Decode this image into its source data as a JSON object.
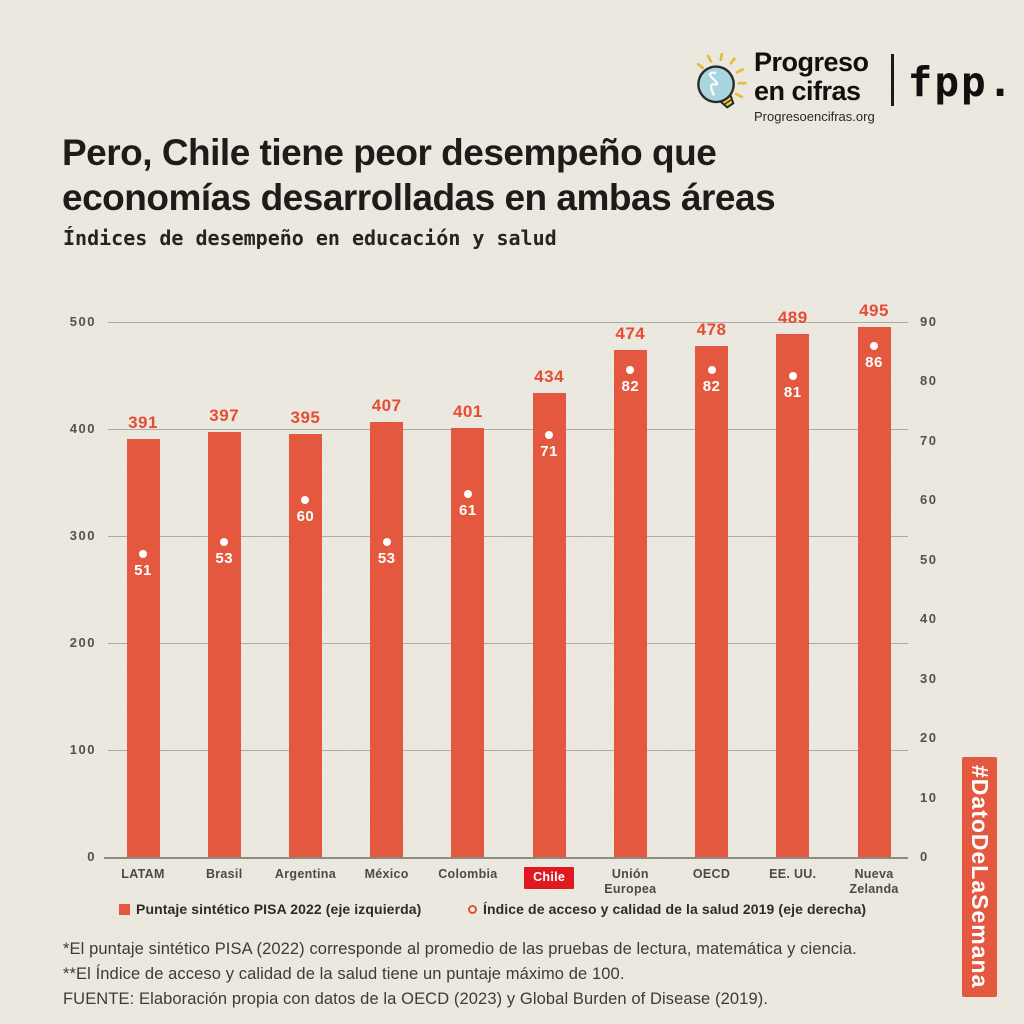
{
  "brand": {
    "name": "Progreso\nen cifras",
    "url": "Progresoencifras.org",
    "partner": "fpp.",
    "icon": "lightbulb-icon"
  },
  "header": {
    "title": "Pero, Chile tiene peor desempeño que\neconomías desarrolladas en ambas áreas",
    "subtitle": "Índices de desempeño en educación y salud"
  },
  "chart_data": {
    "type": "bar",
    "title": "Índices de desempeño en educación y salud",
    "categories": [
      "LATAM",
      "Brasil",
      "Argentina",
      "México",
      "Colombia",
      "Chile",
      "Unión\nEuropea",
      "OECD",
      "EE. UU.",
      "Nueva\nZelanda"
    ],
    "series": [
      {
        "name": "Puntaje sintético PISA 2022 (eje izquierda)",
        "type": "bar",
        "axis": "left",
        "values": [
          391,
          397,
          395,
          407,
          401,
          434,
          474,
          478,
          489,
          495
        ]
      },
      {
        "name": "Índice de acceso y calidad de la salud 2019 (eje derecha)",
        "type": "scatter",
        "axis": "right",
        "values": [
          51,
          53,
          60,
          53,
          61,
          71,
          82,
          82,
          81,
          86
        ]
      }
    ],
    "highlight_category": "Chile",
    "left_axis": {
      "min": 0,
      "max": 500,
      "ticks": [
        500,
        400,
        300,
        200,
        100,
        0
      ]
    },
    "right_axis": {
      "min": 0,
      "max": 90,
      "ticks": [
        90,
        80,
        70,
        60,
        50,
        40,
        30,
        20,
        10,
        0
      ]
    },
    "grid": true,
    "legend_position": "bottom"
  },
  "legend": {
    "items": [
      {
        "marker": "square",
        "label": "Puntaje sintético PISA 2022 (eje izquierda)"
      },
      {
        "marker": "circle",
        "label": "Índice de acceso y calidad de la salud 2019 (eje derecha)"
      }
    ]
  },
  "footnotes": {
    "note1": "*El puntaje sintético PISA (2022) corresponde al promedio de las pruebas de lectura, matemática y ciencia.",
    "note2": "**El Índice de acceso y calidad de la salud tiene un puntaje máximo de 100.",
    "source": "FUENTE: Elaboración propia con datos de la OECD (2023) y Global Burden of Disease (2019)."
  },
  "banner": {
    "text": "#DatoDeLaSemana"
  },
  "colors": {
    "coral": "#e4583f",
    "value_label_red": "#e74c33",
    "highlight_red": "#de1a20",
    "ink": "#1e1c19",
    "axis_text": "#55514a",
    "gridline": "#b0aba1",
    "paper": "#edeae2",
    "dot_white": "#ffffff"
  }
}
